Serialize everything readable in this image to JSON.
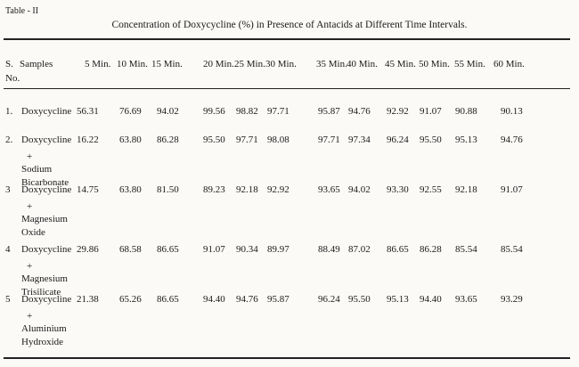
{
  "header": {
    "label": "Table - II",
    "title": "Concentration of Doxycycline (%) in Presence of Antacids at Different Time Intervals."
  },
  "table": {
    "sno_header": [
      "S.",
      "No."
    ],
    "sample_header": "Samples",
    "columns": [
      "5 Min.",
      "10 Min.",
      "15 Min.",
      "20 Min.",
      "25 Min.",
      "30 Min.",
      "35 Min.",
      "40 Min.",
      "45 Min.",
      "50 Min.",
      "55 Min.",
      "60 Min."
    ],
    "rows": [
      {
        "number": "1.",
        "sample": [
          "Doxycycline"
        ],
        "values": [
          "56.31",
          "76.69",
          "94.02",
          "99.56",
          "98.82",
          "97.71",
          "95.87",
          "94.76",
          "92.92",
          "91.07",
          "90.88",
          "90.13"
        ]
      },
      {
        "number": "2.",
        "sample": [
          "Doxycycline",
          "+",
          "Sodium",
          "Bicarbonate"
        ],
        "values": [
          "16.22",
          "63.80",
          "86.28",
          "95.50",
          "97.71",
          "98.08",
          "97.71",
          "97.34",
          "96.24",
          "95.50",
          "95.13",
          "94.76"
        ]
      },
      {
        "number": "3",
        "sample": [
          "Doxycycline",
          "+",
          "Magnesium",
          "Oxide"
        ],
        "values": [
          "14.75",
          "63.80",
          "81.50",
          "89.23",
          "92.18",
          "92.92",
          "93.65",
          "94.02",
          "93.30",
          "92.55",
          "92.18",
          "91.07"
        ]
      },
      {
        "number": "4",
        "sample": [
          "Doxycycline",
          "+",
          "Magnesium",
          "Trisilicate"
        ],
        "values": [
          "29.86",
          "68.58",
          "86.65",
          "91.07",
          "90.34",
          "89.97",
          "88.49",
          "87.02",
          "86.65",
          "86.28",
          "85.54",
          "85.54"
        ]
      },
      {
        "number": "5",
        "sample": [
          "Doxycycline",
          "+",
          "Aluminium",
          "Hydroxide"
        ],
        "values": [
          "21.38",
          "65.26",
          "86.65",
          "94.40",
          "94.76",
          "95.87",
          "96.24",
          "95.50",
          "95.13",
          "94.40",
          "93.65",
          "93.29"
        ]
      }
    ]
  }
}
